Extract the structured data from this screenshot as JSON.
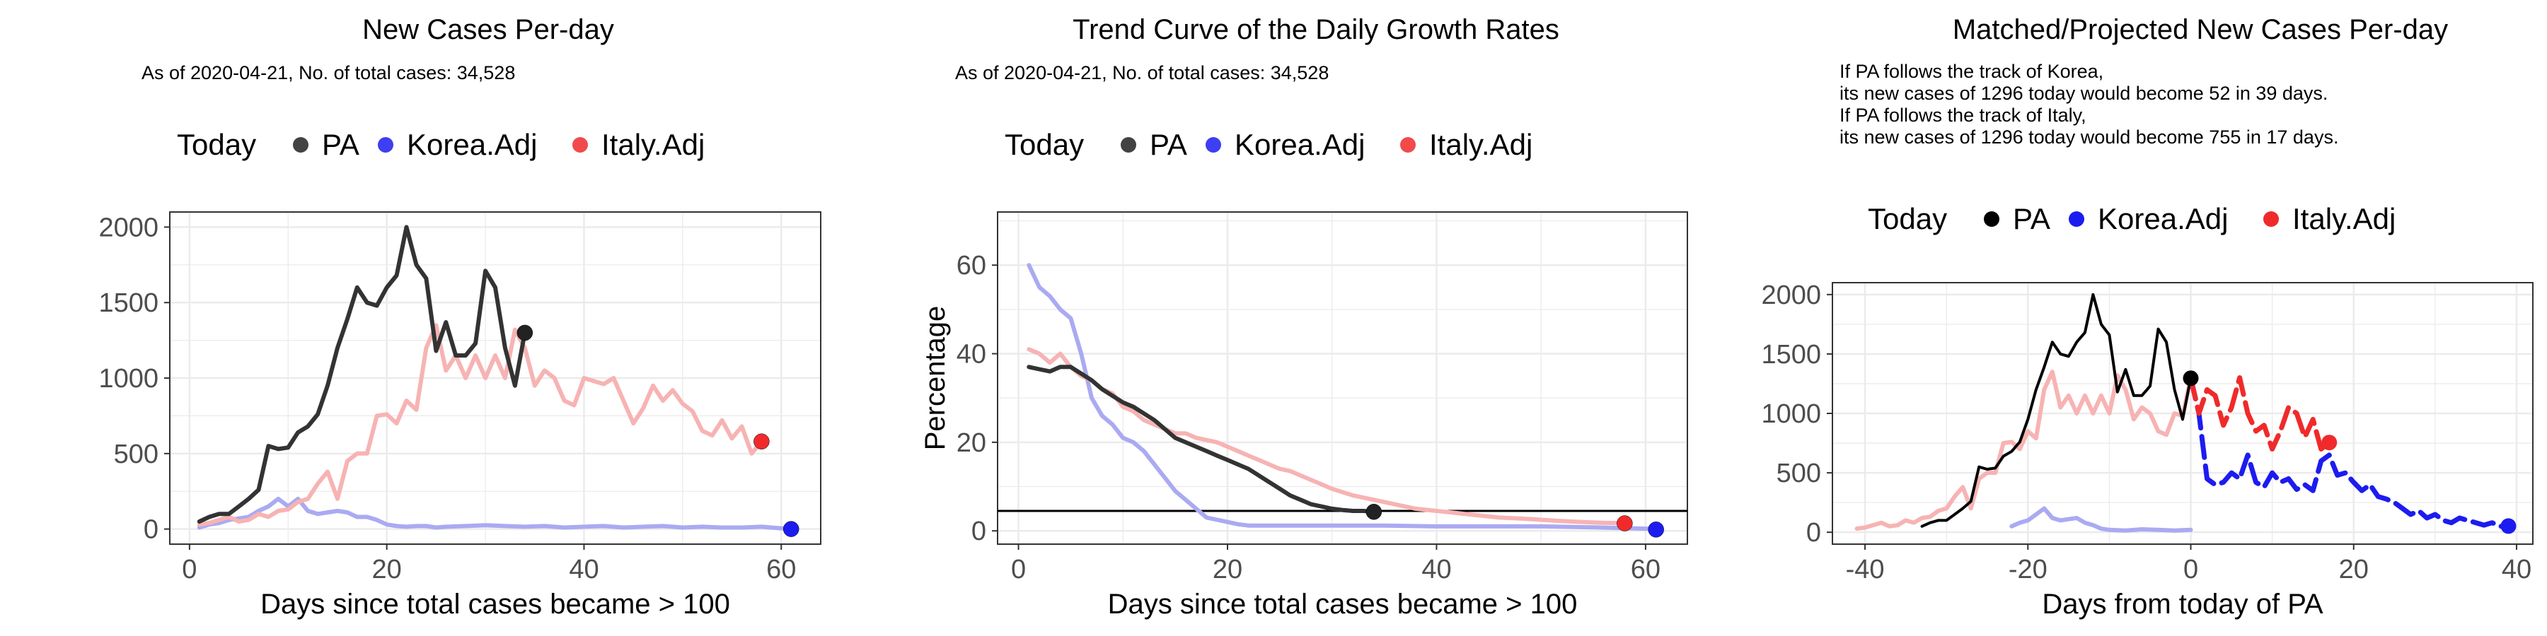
{
  "chart_data": [
    {
      "type": "line",
      "title": "New Cases Per-day",
      "subtitle": "As of 2020-04-21, No. of total cases: 34,528",
      "xlabel": "Days since total cases became > 100",
      "ylabel": "",
      "xlim": [
        -2,
        64
      ],
      "ylim": [
        -100,
        2100
      ],
      "x_ticks": [
        0,
        20,
        40,
        60
      ],
      "y_ticks": [
        0,
        500,
        1000,
        1500,
        2000
      ],
      "grid": true,
      "legend": {
        "position": "top",
        "title": "Today",
        "entries": [
          "PA",
          "Korea.Adj",
          "Italy.Adj"
        ]
      },
      "colors": {
        "PA": "#333333",
        "Korea.Adj": "#aaaaf2",
        "Italy.Adj": "#f7b3b3"
      },
      "marker_colors": {
        "PA": "#222222",
        "Korea.Adj": "#1c1cf0",
        "Italy.Adj": "#f02a2a"
      },
      "series": [
        {
          "name": "PA",
          "x": [
            1,
            2,
            3,
            4,
            5,
            6,
            7,
            8,
            9,
            10,
            11,
            12,
            13,
            14,
            15,
            16,
            17,
            18,
            19,
            20,
            21,
            22,
            23,
            24,
            25,
            26,
            27,
            28,
            29,
            30,
            31,
            32,
            33,
            34
          ],
          "y": [
            50,
            80,
            100,
            100,
            150,
            200,
            260,
            550,
            530,
            540,
            640,
            680,
            760,
            950,
            1200,
            1390,
            1600,
            1500,
            1480,
            1600,
            1680,
            2000,
            1750,
            1660,
            1180,
            1370,
            1150,
            1150,
            1230,
            1710,
            1600,
            1200,
            950,
            1300
          ]
        },
        {
          "name": "Korea.Adj",
          "x": [
            1,
            2,
            3,
            4,
            5,
            6,
            7,
            8,
            9,
            10,
            11,
            12,
            13,
            14,
            15,
            16,
            17,
            18,
            19,
            20,
            21,
            22,
            23,
            24,
            25,
            26,
            28,
            30,
            32,
            34,
            36,
            38,
            40,
            42,
            44,
            46,
            48,
            50,
            52,
            54,
            56,
            58,
            60,
            61
          ],
          "y": [
            10,
            30,
            40,
            60,
            70,
            80,
            120,
            150,
            200,
            150,
            200,
            120,
            100,
            110,
            120,
            110,
            80,
            80,
            60,
            30,
            20,
            15,
            20,
            20,
            10,
            15,
            20,
            25,
            20,
            15,
            20,
            10,
            15,
            20,
            10,
            15,
            20,
            10,
            15,
            10,
            10,
            15,
            5,
            5
          ]
        },
        {
          "name": "Italy.Adj",
          "x": [
            1,
            2,
            3,
            4,
            5,
            6,
            7,
            8,
            9,
            10,
            11,
            12,
            13,
            14,
            15,
            16,
            17,
            18,
            19,
            20,
            21,
            22,
            23,
            24,
            25,
            26,
            27,
            28,
            29,
            30,
            31,
            32,
            33,
            34,
            35,
            36,
            37,
            38,
            39,
            40,
            41,
            42,
            43,
            44,
            45,
            46,
            47,
            48,
            49,
            50,
            51,
            52,
            53,
            54,
            55,
            56,
            57,
            58
          ],
          "y": [
            30,
            40,
            60,
            80,
            50,
            60,
            100,
            80,
            120,
            130,
            180,
            200,
            300,
            380,
            200,
            450,
            500,
            500,
            750,
            760,
            700,
            850,
            790,
            1200,
            1350,
            1050,
            1150,
            1000,
            1150,
            1000,
            1150,
            1000,
            1320,
            1200,
            950,
            1050,
            1000,
            850,
            820,
            1000,
            980,
            960,
            1000,
            850,
            700,
            800,
            950,
            850,
            920,
            830,
            780,
            650,
            620,
            720,
            600,
            680,
            500,
            580
          ]
        }
      ],
      "today_points": [
        {
          "name": "PA",
          "x": 34,
          "y": 1300
        },
        {
          "name": "Korea.Adj",
          "x": 61,
          "y": 0
        },
        {
          "name": "Italy.Adj",
          "x": 58,
          "y": 580
        }
      ]
    },
    {
      "type": "line",
      "title": "Trend Curve of the Daily Growth Rates",
      "subtitle": "As of 2020-04-21, No. of total cases: 34,528",
      "xlabel": "Days since total cases became > 100",
      "ylabel": "Percentage",
      "xlim": [
        -2,
        64
      ],
      "ylim": [
        -3,
        72
      ],
      "x_ticks": [
        0,
        20,
        40,
        60
      ],
      "y_ticks": [
        0,
        20,
        40,
        60
      ],
      "grid": true,
      "hline": 4.5,
      "legend": {
        "position": "top",
        "title": "Today",
        "entries": [
          "PA",
          "Korea.Adj",
          "Italy.Adj"
        ]
      },
      "colors": {
        "PA": "#333333",
        "Korea.Adj": "#aaaaf2",
        "Italy.Adj": "#f7b3b3"
      },
      "marker_colors": {
        "PA": "#222222",
        "Korea.Adj": "#1c1cf0",
        "Italy.Adj": "#f02a2a"
      },
      "series": [
        {
          "name": "PA",
          "x": [
            1,
            2,
            3,
            4,
            5,
            6,
            7,
            8,
            9,
            10,
            11,
            12,
            13,
            14,
            15,
            16,
            17,
            18,
            19,
            20,
            21,
            22,
            23,
            24,
            25,
            26,
            27,
            28,
            29,
            30,
            31,
            32,
            33,
            34
          ],
          "y": [
            37,
            36.5,
            36,
            37,
            37,
            35.5,
            34,
            32,
            30.5,
            29,
            28,
            26.5,
            25,
            23,
            21,
            20,
            19,
            18,
            17,
            16,
            15,
            14,
            12.5,
            11,
            9.5,
            8,
            7,
            6,
            5.5,
            5,
            4.7,
            4.5,
            4.5,
            4.3
          ]
        },
        {
          "name": "Korea.Adj",
          "x": [
            1,
            2,
            3,
            4,
            5,
            6,
            7,
            8,
            9,
            10,
            11,
            12,
            13,
            14,
            15,
            16,
            17,
            18,
            19,
            20,
            21,
            22,
            23,
            24,
            25,
            26,
            27,
            28,
            29,
            30,
            35,
            40,
            45,
            50,
            55,
            60,
            61
          ],
          "y": [
            60,
            55,
            53,
            50,
            48,
            40,
            30,
            26,
            24,
            21,
            20,
            18,
            15,
            12,
            9,
            7,
            5,
            3,
            2.5,
            2,
            1.5,
            1.2,
            1.2,
            1.2,
            1.2,
            1.2,
            1.2,
            1.2,
            1.2,
            1.2,
            1.2,
            1,
            1,
            1,
            0.8,
            0.5,
            0.5
          ]
        },
        {
          "name": "Italy.Adj",
          "x": [
            1,
            2,
            3,
            4,
            5,
            6,
            7,
            8,
            9,
            10,
            11,
            12,
            13,
            14,
            15,
            16,
            17,
            18,
            19,
            20,
            21,
            22,
            23,
            24,
            25,
            26,
            27,
            28,
            29,
            30,
            32,
            34,
            36,
            38,
            40,
            42,
            44,
            46,
            48,
            50,
            52,
            54,
            56,
            58
          ],
          "y": [
            41,
            40,
            38,
            40,
            37,
            35,
            34,
            32,
            31,
            28,
            27,
            25,
            24,
            23,
            22,
            22,
            21,
            20.5,
            20,
            19,
            18,
            17,
            16,
            15,
            14,
            13.5,
            12.5,
            11.5,
            10.5,
            9.5,
            8,
            7,
            6,
            5,
            4.5,
            4,
            3.5,
            3,
            2.8,
            2.5,
            2.2,
            2,
            1.8,
            1.7
          ]
        }
      ],
      "today_points": [
        {
          "name": "PA",
          "x": 34,
          "y": 4.3
        },
        {
          "name": "Korea.Adj",
          "x": 61,
          "y": 0.3
        },
        {
          "name": "Italy.Adj",
          "x": 58,
          "y": 1.7
        }
      ]
    },
    {
      "type": "line",
      "title": "Matched/Projected New Cases Per-day",
      "notes": [
        "If PA follows the track of Korea,",
        "its new cases of 1296 today would become 52 in 39 days.",
        "If PA follows the track of Italy,",
        "its new cases of 1296 today would become 755 in 17 days."
      ],
      "xlabel": "Days from today of PA",
      "ylabel": "",
      "xlim": [
        -44,
        42
      ],
      "ylim": [
        -100,
        2100
      ],
      "x_ticks": [
        -40,
        -20,
        0,
        20,
        40
      ],
      "y_ticks": [
        0,
        500,
        1000,
        1500,
        2000
      ],
      "grid": true,
      "legend": {
        "position": "top",
        "title": "Today",
        "entries": [
          "PA",
          "Korea.Adj",
          "Italy.Adj"
        ]
      },
      "colors": {
        "PA": "#000000",
        "Korea.Adj": "#1c1cf0",
        "Italy.Adj": "#f02a2a"
      },
      "faded_colors": {
        "PA": "#000000",
        "Korea.Adj": "#aaaaf2",
        "Italy.Adj": "#f7b3b3"
      },
      "series": [
        {
          "name": "PA",
          "x": [
            -33,
            -32,
            -31,
            -30,
            -29,
            -28,
            -27,
            -26,
            -25,
            -24,
            -23,
            -22,
            -21,
            -20,
            -19,
            -18,
            -17,
            -16,
            -15,
            -14,
            -13,
            -12,
            -11,
            -10,
            -9,
            -8,
            -7,
            -6,
            -5,
            -4,
            -3,
            -2,
            -1,
            0
          ],
          "y": [
            50,
            80,
            100,
            100,
            150,
            200,
            260,
            550,
            530,
            540,
            640,
            680,
            760,
            950,
            1200,
            1390,
            1600,
            1500,
            1480,
            1600,
            1680,
            2000,
            1750,
            1660,
            1180,
            1370,
            1150,
            1150,
            1230,
            1710,
            1600,
            1200,
            950,
            1300
          ]
        },
        {
          "name": "Korea.Adj (matched)",
          "x": [
            -22,
            -21,
            -20,
            -19,
            -18,
            -17,
            -16,
            -15,
            -14,
            -13,
            -12,
            -11,
            -10,
            -8,
            -6,
            -4,
            -2,
            0
          ],
          "y": [
            50,
            80,
            100,
            150,
            200,
            120,
            100,
            110,
            120,
            80,
            60,
            30,
            20,
            15,
            25,
            20,
            15,
            20
          ]
        },
        {
          "name": "Korea.Adj (projected)",
          "x": [
            0,
            1,
            2,
            3,
            4,
            5,
            6,
            7,
            8,
            9,
            10,
            11,
            12,
            13,
            14,
            15,
            16,
            17,
            18,
            19,
            20,
            21,
            22,
            23,
            24,
            25,
            26,
            27,
            28,
            29,
            30,
            31,
            32,
            33,
            34,
            35,
            36,
            37,
            38,
            39
          ],
          "y": [
            1296,
            1000,
            450,
            400,
            420,
            500,
            450,
            650,
            420,
            380,
            500,
            420,
            450,
            360,
            400,
            350,
            600,
            650,
            480,
            500,
            420,
            350,
            400,
            300,
            280,
            250,
            200,
            150,
            180,
            120,
            150,
            100,
            80,
            120,
            100,
            80,
            60,
            80,
            50,
            52
          ]
        },
        {
          "name": "Italy.Adj (matched)",
          "x": [
            -41,
            -40,
            -39,
            -38,
            -37,
            -36,
            -35,
            -34,
            -33,
            -32,
            -31,
            -30,
            -29,
            -28,
            -27,
            -26,
            -25,
            -24,
            -23,
            -22,
            -21,
            -20,
            -19,
            -18,
            -17,
            -16,
            -15,
            -14,
            -13,
            -12,
            -11,
            -10,
            -9,
            -8,
            -7,
            -6,
            -5,
            -4,
            -3,
            -2,
            -1,
            0
          ],
          "y": [
            30,
            40,
            60,
            80,
            50,
            60,
            100,
            80,
            120,
            130,
            180,
            200,
            300,
            380,
            200,
            450,
            500,
            500,
            750,
            760,
            700,
            850,
            790,
            1200,
            1350,
            1050,
            1150,
            1000,
            1150,
            1000,
            1150,
            1000,
            1320,
            1200,
            950,
            1050,
            1000,
            850,
            820,
            1000,
            980,
            1296
          ]
        },
        {
          "name": "Italy.Adj (projected)",
          "x": [
            0,
            1,
            2,
            3,
            4,
            5,
            6,
            7,
            8,
            9,
            10,
            11,
            12,
            13,
            14,
            15,
            16,
            17
          ],
          "y": [
            1296,
            1000,
            1200,
            1150,
            900,
            1050,
            1300,
            1000,
            850,
            900,
            700,
            850,
            1050,
            1000,
            800,
            950,
            700,
            755
          ]
        }
      ],
      "today_points": [
        {
          "name": "PA",
          "x": 0,
          "y": 1296
        },
        {
          "name": "Korea.Adj",
          "x": 39,
          "y": 52
        },
        {
          "name": "Italy.Adj",
          "x": 17,
          "y": 755
        }
      ]
    }
  ]
}
